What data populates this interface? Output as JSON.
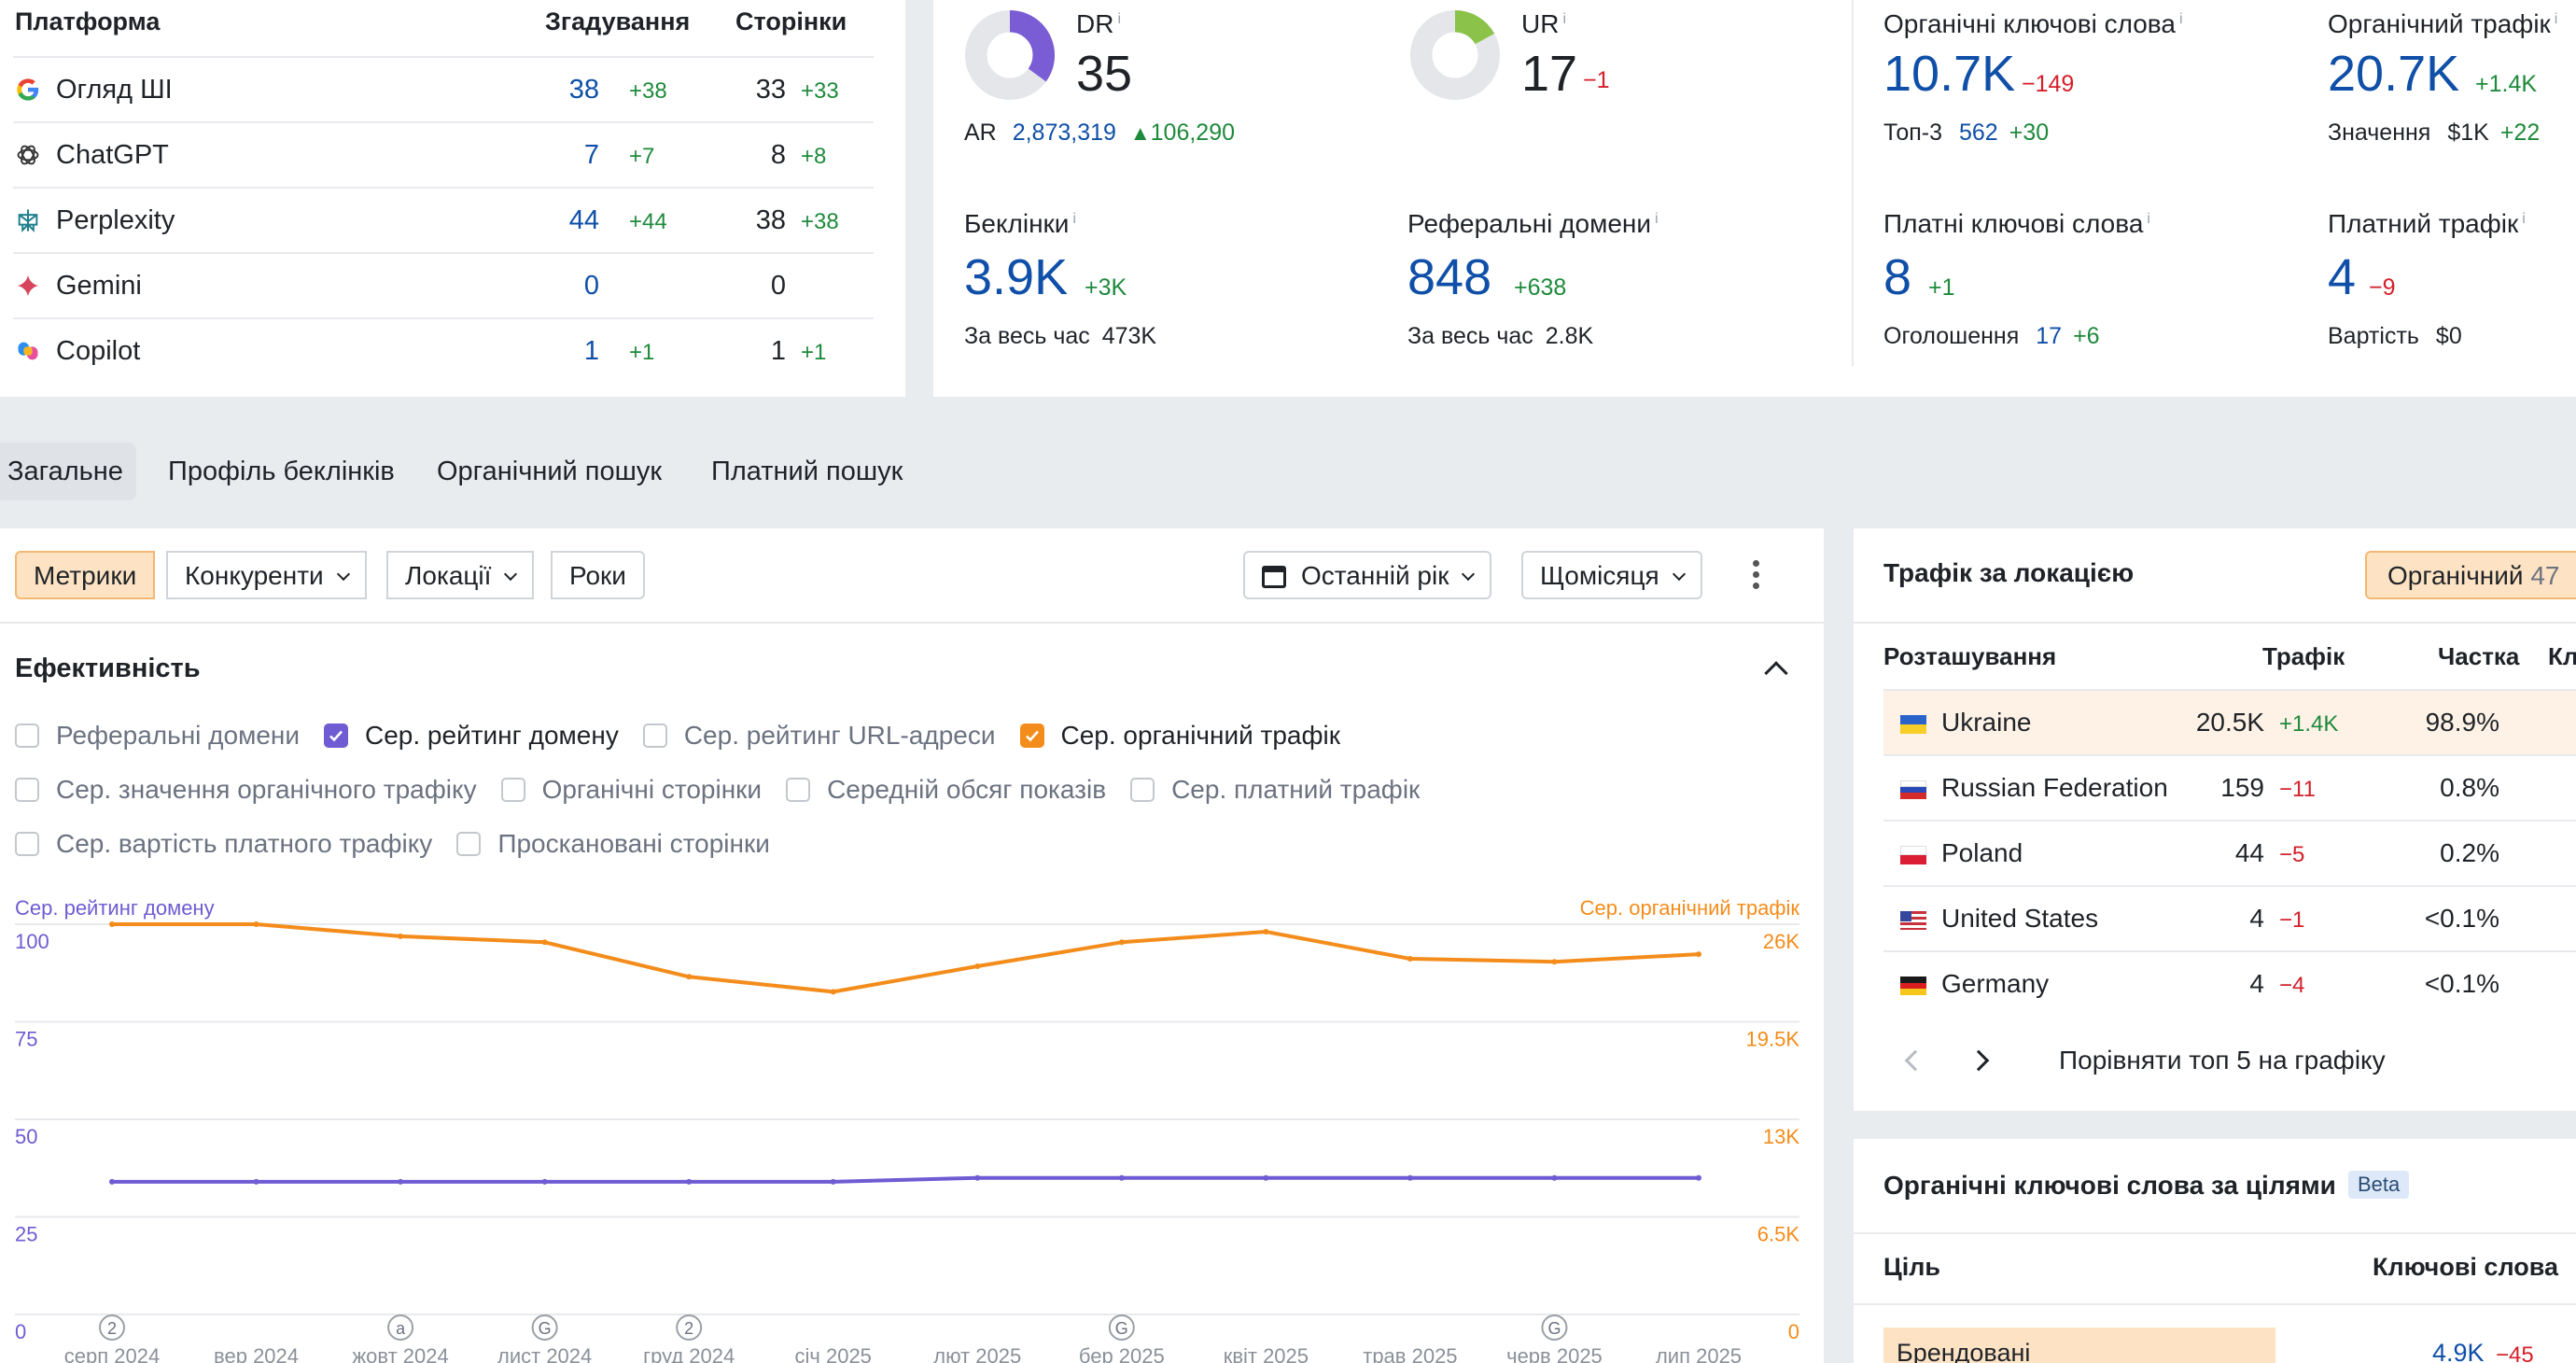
{
  "ai_table": {
    "headers": {
      "platform": "Платформа",
      "mentions": "Згадування",
      "pages": "Сторінки"
    },
    "rows": [
      {
        "name": "Огляд ШІ",
        "icon": "google-icon",
        "mentions": "38",
        "mentions_delta": "+38",
        "pages": "33",
        "pages_delta": "+33"
      },
      {
        "name": "ChatGPT",
        "icon": "chatgpt-icon",
        "mentions": "7",
        "mentions_delta": "+7",
        "pages": "8",
        "pages_delta": "+8"
      },
      {
        "name": "Perplexity",
        "icon": "perplexity-icon",
        "mentions": "44",
        "mentions_delta": "+44",
        "pages": "38",
        "pages_delta": "+38"
      },
      {
        "name": "Gemini",
        "icon": "gemini-icon",
        "mentions": "0",
        "mentions_delta": "",
        "pages": "0",
        "pages_delta": ""
      },
      {
        "name": "Copilot",
        "icon": "copilot-icon",
        "mentions": "1",
        "mentions_delta": "+1",
        "pages": "1",
        "pages_delta": "+1"
      }
    ]
  },
  "metrics": {
    "dr": {
      "label": "DR",
      "value": "35",
      "ratio": 0.35,
      "color": "#7a5cd4"
    },
    "ar": {
      "label": "AR",
      "value": "2,873,319",
      "delta": "106,290"
    },
    "ur": {
      "label": "UR",
      "value": "17",
      "delta": "−1",
      "ratio": 0.17,
      "color": "#8bc34a"
    },
    "backlinks": {
      "label": "Беклінки",
      "value": "3.9K",
      "delta": "+3K",
      "sub_label": "За весь час",
      "sub_value": "473K"
    },
    "ref_domains": {
      "label": "Реферальні домени",
      "value": "848",
      "delta": "+638",
      "sub_label": "За весь час",
      "sub_value": "2.8K"
    },
    "org_keywords": {
      "label": "Органічні ключові слова",
      "value": "10.7K",
      "delta": "−149",
      "sub_label": "Топ-3",
      "sub_value": "562",
      "sub_delta": "+30"
    },
    "org_traffic": {
      "label": "Органічний трафік",
      "value": "20.7K",
      "delta": "+1.4K",
      "sub_label": "Значення",
      "sub_value": "$1K",
      "sub_delta": "+22"
    },
    "paid_keywords": {
      "label": "Платні ключові слова",
      "value": "8",
      "delta": "+1",
      "sub_label": "Оголошення",
      "sub_value": "17",
      "sub_delta": "+6"
    },
    "paid_traffic": {
      "label": "Платний трафік",
      "value": "4",
      "delta": "−9",
      "sub_label": "Вартість",
      "sub_value": "$0"
    }
  },
  "tabs": [
    "Загальне",
    "Профіль беклінків",
    "Органічний пошук",
    "Платний пошук"
  ],
  "toolbar": {
    "metrics": "Метрики",
    "competitors": "Конкуренти",
    "locations": "Локації",
    "years": "Роки",
    "period": "Останній рік",
    "interval": "Щомісяця"
  },
  "performance": {
    "title": "Ефективність",
    "checkboxes": [
      [
        {
          "label": "Реферальні домени",
          "checked": false
        },
        {
          "label": "Сер. рейтинг домену",
          "checked": true,
          "color": "#6f5bd2"
        },
        {
          "label": "Сер. рейтинг URL-адреси",
          "checked": false
        },
        {
          "label": "Сер. органічний трафік",
          "checked": true,
          "color": "#f48c1b"
        }
      ],
      [
        {
          "label": "Сер. значення органічного трафіку",
          "checked": false
        },
        {
          "label": "Органічні сторінки",
          "checked": false
        },
        {
          "label": "Середній обсяг показів",
          "checked": false
        },
        {
          "label": "Сер. платний трафік",
          "checked": false
        }
      ],
      [
        {
          "label": "Сер. вартість платного трафіку",
          "checked": false
        },
        {
          "label": "Проскановані сторінки",
          "checked": false
        }
      ]
    ]
  },
  "chart_data": {
    "type": "line",
    "left_axis_label": "Сер. рейтинг домену",
    "right_axis_label": "Сер. органічний трафік",
    "x": [
      "серп 2024",
      "вер 2024",
      "жовт 2024",
      "лист 2024",
      "груд 2024",
      "січ 2025",
      "лют 2025",
      "бер 2025",
      "квіт 2025",
      "трав 2025",
      "черв 2025",
      "лип 2025"
    ],
    "left_ticks": [
      "100",
      "75",
      "50",
      "25",
      "0"
    ],
    "right_ticks": [
      "26K",
      "19.5K",
      "13K",
      "6.5K",
      "0"
    ],
    "ylim_left": [
      0,
      100
    ],
    "ylim_right": [
      0,
      26000
    ],
    "grid": true,
    "series": [
      {
        "name": "Сер. рейтинг домену",
        "axis": "left",
        "color": "#6f5bd2",
        "values": [
          34,
          34,
          34,
          34,
          34,
          34,
          35,
          35,
          35,
          35,
          35,
          35
        ]
      },
      {
        "name": "Сер. органічний трафік",
        "axis": "right",
        "color": "#f48c1b",
        "values": [
          26000,
          26000,
          25200,
          24800,
          22500,
          21500,
          23200,
          24800,
          25500,
          23700,
          23500,
          24000
        ]
      }
    ],
    "annotations": [
      {
        "x": "серп 2024",
        "glyph": "2"
      },
      {
        "x": "жовт 2024",
        "glyph": "a"
      },
      {
        "x": "лист 2024",
        "glyph": "G"
      },
      {
        "x": "груд 2024",
        "glyph": "2"
      },
      {
        "x": "бер 2025",
        "glyph": "G"
      },
      {
        "x": "черв 2025",
        "glyph": "G"
      }
    ]
  },
  "location": {
    "title": "Трафік за локацією",
    "filter_label": "Органічний",
    "filter_count": "47",
    "headers": {
      "location": "Розташування",
      "traffic": "Трафік",
      "share": "Частка",
      "extra": "Кл"
    },
    "rows": [
      {
        "country": "Ukraine",
        "flag": "ua-flag",
        "traffic": "20.5K",
        "delta": "+1.4K",
        "share": "98.9%"
      },
      {
        "country": "Russian Federation",
        "flag": "ru-flag",
        "traffic": "159",
        "delta": "−11",
        "share": "0.8%"
      },
      {
        "country": "Poland",
        "flag": "pl-flag",
        "traffic": "44",
        "delta": "−5",
        "share": "0.2%"
      },
      {
        "country": "United States",
        "flag": "us-flag",
        "traffic": "4",
        "delta": "−1",
        "share": "<0.1%"
      },
      {
        "country": "Germany",
        "flag": "de-flag",
        "traffic": "4",
        "delta": "−4",
        "share": "<0.1%"
      }
    ],
    "compare_label": "Порівняти топ 5 на графіку"
  },
  "goals": {
    "title": "Органічні ключові слова за цілями",
    "badge": "Beta",
    "col_goal": "Ціль",
    "col_keywords": "Ключові слова",
    "first_row": {
      "goal": "Брендовані",
      "value": "4.9K",
      "delta": "−45"
    }
  }
}
